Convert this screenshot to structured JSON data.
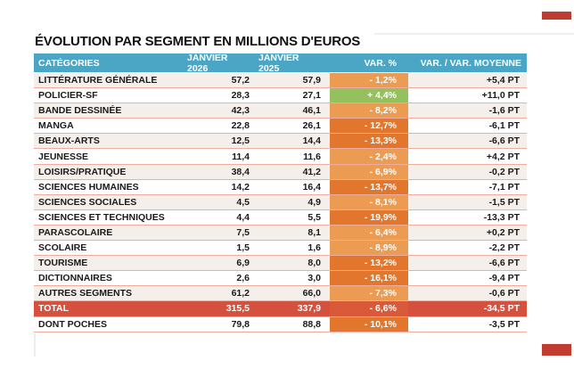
{
  "page": {
    "title": "ÉVOLUTION PAR SEGMENT EN MILLIONS D'EUROS"
  },
  "colors": {
    "header_bg": "#4BA6C6",
    "row_shaded_bg": "#F5EFEB",
    "row_separator": "#EFAE9D",
    "text": "#1A1A1A",
    "total_row_bg": "#D5503D",
    "crop_mark": "#C23B30",
    "var_levels": {
      "light": "#EC9B52",
      "dark": "#E2762C",
      "green": "#94C15E",
      "total": "#D95A38"
    }
  },
  "table": {
    "columns": [
      "CATÉGORIES",
      "JANVIER 2026",
      "JANVIER 2025",
      "VAR. %",
      "VAR. / VAR. MOYENNE"
    ],
    "rows": [
      {
        "category": "LITTÉRATURE GÉNÉRALE",
        "jan2026": "57,2",
        "jan2025": "57,9",
        "var_pct": "- 1,2%",
        "var_level": "light",
        "var_moyenne": "+5,4 PT",
        "shaded": true,
        "total": false
      },
      {
        "category": "POLICIER-SF",
        "jan2026": "28,3",
        "jan2025": "27,1",
        "var_pct": "+ 4,4%",
        "var_level": "green",
        "var_moyenne": "+11,0 PT",
        "shaded": false,
        "total": false
      },
      {
        "category": "BANDE DESSINÉE",
        "jan2026": "42,3",
        "jan2025": "46,1",
        "var_pct": "- 8,2%",
        "var_level": "light",
        "var_moyenne": "-1,6 PT",
        "shaded": true,
        "total": false
      },
      {
        "category": "MANGA",
        "jan2026": "22,8",
        "jan2025": "26,1",
        "var_pct": "- 12,7%",
        "var_level": "dark",
        "var_moyenne": "-6,1 PT",
        "shaded": false,
        "total": false
      },
      {
        "category": "BEAUX-ARTS",
        "jan2026": "12,5",
        "jan2025": "14,4",
        "var_pct": "- 13,3%",
        "var_level": "dark",
        "var_moyenne": "-6,6 PT",
        "shaded": true,
        "total": false
      },
      {
        "category": "JEUNESSE",
        "jan2026": "11,4",
        "jan2025": "11,6",
        "var_pct": "- 2,4%",
        "var_level": "light",
        "var_moyenne": "+4,2 PT",
        "shaded": false,
        "total": false
      },
      {
        "category": "LOISIRS/PRATIQUE",
        "jan2026": "38,4",
        "jan2025": "41,2",
        "var_pct": "- 6,9%",
        "var_level": "light",
        "var_moyenne": "-0,2 PT",
        "shaded": true,
        "total": false
      },
      {
        "category": "SCIENCES HUMAINES",
        "jan2026": "14,2",
        "jan2025": "16,4",
        "var_pct": "- 13,7%",
        "var_level": "dark",
        "var_moyenne": "-7,1 PT",
        "shaded": false,
        "total": false
      },
      {
        "category": "SCIENCES SOCIALES",
        "jan2026": "4,5",
        "jan2025": "4,9",
        "var_pct": "- 8,1%",
        "var_level": "light",
        "var_moyenne": "-1,5 PT",
        "shaded": true,
        "total": false
      },
      {
        "category": "SCIENCES ET TECHNIQUES",
        "jan2026": "4,4",
        "jan2025": "5,5",
        "var_pct": "- 19,9%",
        "var_level": "dark",
        "var_moyenne": "-13,3 PT",
        "shaded": false,
        "total": false
      },
      {
        "category": "PARASCOLAIRE",
        "jan2026": "7,5",
        "jan2025": "8,1",
        "var_pct": "- 6,4%",
        "var_level": "light",
        "var_moyenne": "+0,2 PT",
        "shaded": true,
        "total": false
      },
      {
        "category": "SCOLAIRE",
        "jan2026": "1,5",
        "jan2025": "1,6",
        "var_pct": "- 8,9%",
        "var_level": "light",
        "var_moyenne": "-2,2 PT",
        "shaded": false,
        "total": false
      },
      {
        "category": "TOURISME",
        "jan2026": "6,9",
        "jan2025": "8,0",
        "var_pct": "- 13,2%",
        "var_level": "dark",
        "var_moyenne": "-6,6 PT",
        "shaded": true,
        "total": false
      },
      {
        "category": "DICTIONNAIRES",
        "jan2026": "2,6",
        "jan2025": "3,0",
        "var_pct": "- 16,1%",
        "var_level": "dark",
        "var_moyenne": "-9,4 PT",
        "shaded": false,
        "total": false
      },
      {
        "category": "AUTRES SEGMENTS",
        "jan2026": "61,2",
        "jan2025": "66,0",
        "var_pct": "- 7,3%",
        "var_level": "light",
        "var_moyenne": "-0,6 PT",
        "shaded": true,
        "total": false
      },
      {
        "category": "TOTAL",
        "jan2026": "315,5",
        "jan2025": "337,9",
        "var_pct": "- 6,6%",
        "var_level": "total",
        "var_moyenne": "-34,5 PT",
        "shaded": false,
        "total": true
      },
      {
        "category": "DONT POCHES",
        "jan2026": "79,8",
        "jan2025": "88,8",
        "var_pct": "- 10,1%",
        "var_level": "dark",
        "var_moyenne": "-3,5 PT",
        "shaded": false,
        "total": false
      }
    ]
  }
}
